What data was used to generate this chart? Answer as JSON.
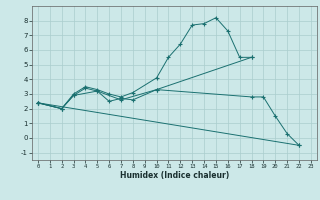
{
  "xlabel": "Humidex (Indice chaleur)",
  "xlim": [
    -0.5,
    23.5
  ],
  "ylim": [
    -1.5,
    9.0
  ],
  "yticks": [
    -1,
    0,
    1,
    2,
    3,
    4,
    5,
    6,
    7,
    8
  ],
  "xticks": [
    0,
    1,
    2,
    3,
    4,
    5,
    6,
    7,
    8,
    9,
    10,
    11,
    12,
    13,
    14,
    15,
    16,
    17,
    18,
    19,
    20,
    21,
    22,
    23
  ],
  "bg_color": "#cce8e8",
  "grid_color": "#aacece",
  "line_color": "#1a7070",
  "line1_x": [
    0,
    2,
    3,
    4,
    5,
    6,
    7,
    8,
    10,
    11,
    12,
    13,
    14,
    15,
    16,
    17,
    18
  ],
  "line1_y": [
    2.4,
    2.0,
    3.0,
    3.5,
    3.3,
    3.0,
    2.8,
    3.1,
    4.1,
    5.5,
    6.4,
    7.7,
    7.8,
    8.2,
    7.3,
    5.5,
    5.5
  ],
  "line2_x": [
    0,
    2,
    3,
    4,
    5,
    6,
    7,
    8,
    10,
    18
  ],
  "line2_y": [
    2.4,
    2.0,
    2.9,
    3.4,
    3.2,
    2.5,
    2.7,
    2.6,
    3.3,
    5.5
  ],
  "line3_x": [
    0,
    22
  ],
  "line3_y": [
    2.4,
    -0.5
  ],
  "line4_x": [
    0,
    2,
    3,
    5,
    7,
    10,
    18,
    19,
    20,
    21,
    22
  ],
  "line4_y": [
    2.4,
    2.0,
    2.9,
    3.2,
    2.6,
    3.3,
    2.8,
    2.8,
    1.5,
    0.3,
    -0.5
  ]
}
